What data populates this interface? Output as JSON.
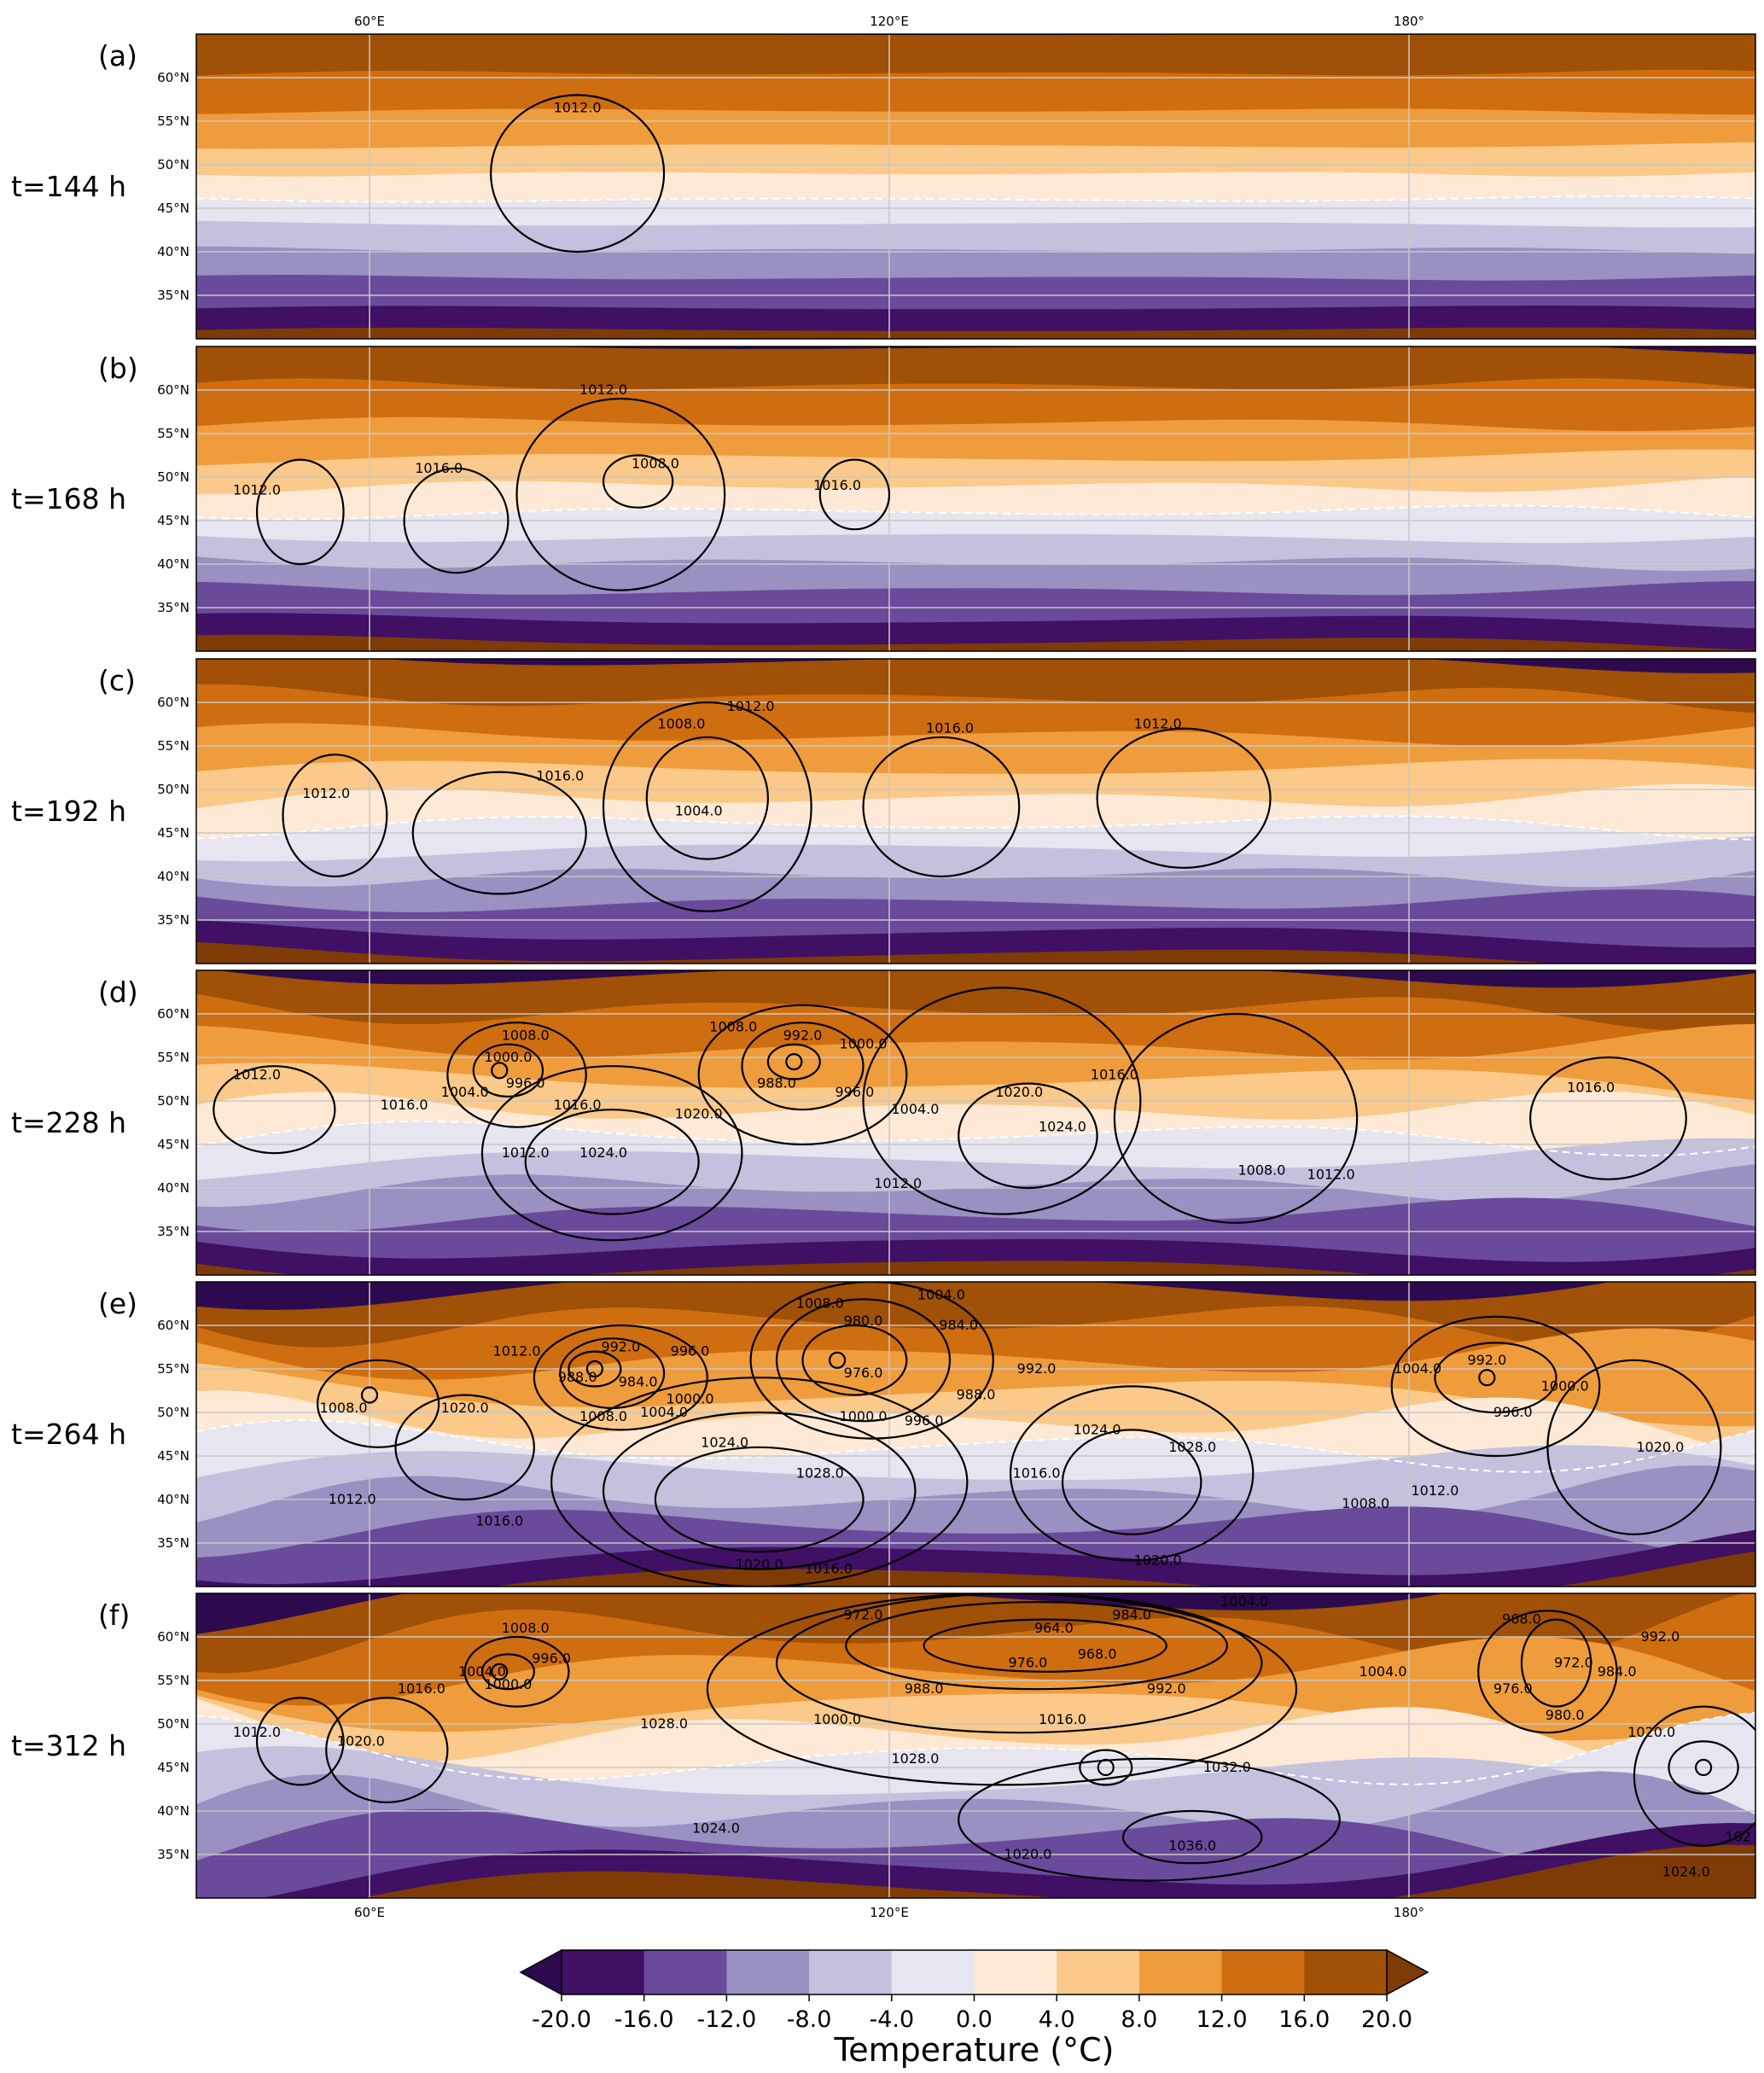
{
  "chart_data": {
    "type": "contour_map",
    "x_ticks": [
      "60°E",
      "120°E",
      "180°"
    ],
    "y_ticks": [
      "60°N",
      "55°N",
      "50°N",
      "45°N",
      "40°N",
      "35°N"
    ],
    "lon_range": [
      40,
      220
    ],
    "lat_range": [
      30,
      65
    ],
    "panels": [
      {
        "label": "(a)",
        "time": "t=144 h",
        "lows": [],
        "contour_labels": [
          {
            "text": "1012.0",
            "lon": 84,
            "lat": 56.5
          }
        ],
        "contours": [
          {
            "lon": 84,
            "lat": 49,
            "rx": 10,
            "ry": 9
          }
        ],
        "wave": 0.5
      },
      {
        "label": "(b)",
        "time": "t=168 h",
        "lows": [],
        "contour_labels": [
          {
            "text": "1012.0",
            "lon": 87,
            "lat": 60
          },
          {
            "text": "1008.0",
            "lon": 93,
            "lat": 51.5
          },
          {
            "text": "1016.0",
            "lon": 68,
            "lat": 51
          },
          {
            "text": "1012.0",
            "lon": 47,
            "lat": 48.5
          },
          {
            "text": "1016.0",
            "lon": 114,
            "lat": 49
          }
        ],
        "contours": [
          {
            "lon": 52,
            "lat": 46,
            "rx": 5,
            "ry": 6
          },
          {
            "lon": 70,
            "lat": 45,
            "rx": 6,
            "ry": 6
          },
          {
            "lon": 89,
            "lat": 48,
            "rx": 12,
            "ry": 11
          },
          {
            "lon": 91,
            "lat": 49.5,
            "rx": 4,
            "ry": 3
          },
          {
            "lon": 116,
            "lat": 48,
            "rx": 4,
            "ry": 4
          }
        ],
        "wave": 1.2
      },
      {
        "label": "(c)",
        "time": "t=192 h",
        "lows": [],
        "contour_labels": [
          {
            "text": "1012.0",
            "lon": 104,
            "lat": 59.5
          },
          {
            "text": "1008.0",
            "lon": 96,
            "lat": 57.5
          },
          {
            "text": "1016.0",
            "lon": 82,
            "lat": 51.5
          },
          {
            "text": "1004.0",
            "lon": 98,
            "lat": 47.5
          },
          {
            "text": "1012.0",
            "lon": 55,
            "lat": 49.5
          },
          {
            "text": "1016.0",
            "lon": 127,
            "lat": 57
          },
          {
            "text": "1012.0",
            "lon": 151,
            "lat": 57.5
          }
        ],
        "contours": [
          {
            "lon": 56,
            "lat": 47,
            "rx": 6,
            "ry": 7
          },
          {
            "lon": 75,
            "lat": 45,
            "rx": 10,
            "ry": 7
          },
          {
            "lon": 99,
            "lat": 48,
            "rx": 12,
            "ry": 12
          },
          {
            "lon": 99,
            "lat": 49,
            "rx": 7,
            "ry": 7
          },
          {
            "lon": 126,
            "lat": 48,
            "rx": 9,
            "ry": 8
          },
          {
            "lon": 154,
            "lat": 49,
            "rx": 10,
            "ry": 8
          }
        ],
        "wave": 2.0
      },
      {
        "label": "(d)",
        "time": "t=228 h",
        "lows": [
          {
            "lon": 75,
            "lat": 53.5
          },
          {
            "lon": 109,
            "lat": 54.5
          }
        ],
        "contour_labels": [
          {
            "text": "1008.0",
            "lon": 78,
            "lat": 57.5
          },
          {
            "text": "1000.0",
            "lon": 76,
            "lat": 55
          },
          {
            "text": "996.0",
            "lon": 78,
            "lat": 52
          },
          {
            "text": "1004.0",
            "lon": 71,
            "lat": 51
          },
          {
            "text": "1012.0",
            "lon": 47,
            "lat": 53
          },
          {
            "text": "1016.0",
            "lon": 64,
            "lat": 49.5
          },
          {
            "text": "1016.0",
            "lon": 84,
            "lat": 49.5
          },
          {
            "text": "1012.0",
            "lon": 78,
            "lat": 44
          },
          {
            "text": "1024.0",
            "lon": 87,
            "lat": 44
          },
          {
            "text": "1020.0",
            "lon": 98,
            "lat": 48.5
          },
          {
            "text": "1008.0",
            "lon": 102,
            "lat": 58.5
          },
          {
            "text": "992.0",
            "lon": 110,
            "lat": 57.5
          },
          {
            "text": "1000.0",
            "lon": 117,
            "lat": 56.5
          },
          {
            "text": "988.0",
            "lon": 107,
            "lat": 52
          },
          {
            "text": "996.0",
            "lon": 116,
            "lat": 51
          },
          {
            "text": "1004.0",
            "lon": 123,
            "lat": 49
          },
          {
            "text": "1020.0",
            "lon": 135,
            "lat": 51
          },
          {
            "text": "1024.0",
            "lon": 140,
            "lat": 47
          },
          {
            "text": "1016.0",
            "lon": 146,
            "lat": 53
          },
          {
            "text": "1012.0",
            "lon": 121,
            "lat": 40.5
          },
          {
            "text": "1008.0",
            "lon": 163,
            "lat": 42
          },
          {
            "text": "1012.0",
            "lon": 171,
            "lat": 41.5
          },
          {
            "text": "1016.0",
            "lon": 201,
            "lat": 51.5
          }
        ],
        "contours": [
          {
            "lon": 49,
            "lat": 49,
            "rx": 7,
            "ry": 5
          },
          {
            "lon": 77,
            "lat": 53,
            "rx": 8,
            "ry": 6
          },
          {
            "lon": 76,
            "lat": 53.5,
            "rx": 4,
            "ry": 3
          },
          {
            "lon": 88,
            "lat": 43,
            "rx": 10,
            "ry": 6
          },
          {
            "lon": 88,
            "lat": 44,
            "rx": 15,
            "ry": 10
          },
          {
            "lon": 110,
            "lat": 53,
            "rx": 12,
            "ry": 8
          },
          {
            "lon": 110,
            "lat": 54,
            "rx": 7,
            "ry": 5
          },
          {
            "lon": 109,
            "lat": 54.5,
            "rx": 3,
            "ry": 2
          },
          {
            "lon": 136,
            "lat": 46,
            "rx": 8,
            "ry": 6
          },
          {
            "lon": 133,
            "lat": 50,
            "rx": 16,
            "ry": 13
          },
          {
            "lon": 160,
            "lat": 48,
            "rx": 14,
            "ry": 12
          },
          {
            "lon": 203,
            "lat": 48,
            "rx": 9,
            "ry": 7
          }
        ],
        "wave": 3.0
      },
      {
        "label": "(e)",
        "time": "t=264 h",
        "lows": [
          {
            "lon": 60,
            "lat": 52
          },
          {
            "lon": 86,
            "lat": 55
          },
          {
            "lon": 114,
            "lat": 56
          },
          {
            "lon": 189,
            "lat": 54
          }
        ],
        "contour_labels": [
          {
            "text": "1008.0",
            "lon": 112,
            "lat": 62.5
          },
          {
            "text": "1004.0",
            "lon": 126,
            "lat": 63.5
          },
          {
            "text": "980.0",
            "lon": 117,
            "lat": 60.5
          },
          {
            "text": "984.0",
            "lon": 128,
            "lat": 60
          },
          {
            "text": "976.0",
            "lon": 117,
            "lat": 54.5
          },
          {
            "text": "992.0",
            "lon": 137,
            "lat": 55
          },
          {
            "text": "988.0",
            "lon": 130,
            "lat": 52
          },
          {
            "text": "1000.0",
            "lon": 117,
            "lat": 49.5
          },
          {
            "text": "996.0",
            "lon": 124,
            "lat": 49
          },
          {
            "text": "1012.0",
            "lon": 77,
            "lat": 57
          },
          {
            "text": "992.0",
            "lon": 89,
            "lat": 57.5
          },
          {
            "text": "996.0",
            "lon": 97,
            "lat": 57
          },
          {
            "text": "988.0",
            "lon": 84,
            "lat": 54
          },
          {
            "text": "984.0",
            "lon": 91,
            "lat": 53.5
          },
          {
            "text": "1000.0",
            "lon": 97,
            "lat": 51.5
          },
          {
            "text": "1004.0",
            "lon": 94,
            "lat": 50
          },
          {
            "text": "1008.0",
            "lon": 87,
            "lat": 49.5
          },
          {
            "text": "1008.0",
            "lon": 57,
            "lat": 50.5
          },
          {
            "text": "1020.0",
            "lon": 71,
            "lat": 50.5
          },
          {
            "text": "1012.0",
            "lon": 58,
            "lat": 40
          },
          {
            "text": "1016.0",
            "lon": 75,
            "lat": 37.5
          },
          {
            "text": "1024.0",
            "lon": 101,
            "lat": 46.5
          },
          {
            "text": "1028.0",
            "lon": 112,
            "lat": 43
          },
          {
            "text": "1020.0",
            "lon": 105,
            "lat": 32.5
          },
          {
            "text": "1016.0",
            "lon": 113,
            "lat": 32
          },
          {
            "text": "1016.0",
            "lon": 137,
            "lat": 43
          },
          {
            "text": "1024.0",
            "lon": 144,
            "lat": 48
          },
          {
            "text": "1028.0",
            "lon": 155,
            "lat": 46
          },
          {
            "text": "1020.0",
            "lon": 151,
            "lat": 33
          },
          {
            "text": "1004.0",
            "lon": 181,
            "lat": 55
          },
          {
            "text": "992.0",
            "lon": 189,
            "lat": 56
          },
          {
            "text": "996.0",
            "lon": 192,
            "lat": 50
          },
          {
            "text": "1000.0",
            "lon": 198,
            "lat": 53
          },
          {
            "text": "1012.0",
            "lon": 183,
            "lat": 41
          },
          {
            "text": "1008.0",
            "lon": 175,
            "lat": 39.5
          },
          {
            "text": "1020.0",
            "lon": 209,
            "lat": 46
          }
        ],
        "contours": [
          {
            "lon": 61,
            "lat": 51,
            "rx": 7,
            "ry": 5
          },
          {
            "lon": 71,
            "lat": 46,
            "rx": 8,
            "ry": 6
          },
          {
            "lon": 89,
            "lat": 54,
            "rx": 10,
            "ry": 6
          },
          {
            "lon": 88,
            "lat": 54.5,
            "rx": 6,
            "ry": 4
          },
          {
            "lon": 86,
            "lat": 55,
            "rx": 3,
            "ry": 2
          },
          {
            "lon": 105,
            "lat": 40,
            "rx": 12,
            "ry": 6
          },
          {
            "lon": 105,
            "lat": 41,
            "rx": 18,
            "ry": 9
          },
          {
            "lon": 105,
            "lat": 42,
            "rx": 24,
            "ry": 12
          },
          {
            "lon": 118,
            "lat": 56,
            "rx": 14,
            "ry": 9
          },
          {
            "lon": 117,
            "lat": 56,
            "rx": 10,
            "ry": 7
          },
          {
            "lon": 116,
            "lat": 56,
            "rx": 6,
            "ry": 4
          },
          {
            "lon": 148,
            "lat": 42,
            "rx": 8,
            "ry": 6
          },
          {
            "lon": 148,
            "lat": 43,
            "rx": 14,
            "ry": 10
          },
          {
            "lon": 190,
            "lat": 53,
            "rx": 12,
            "ry": 8
          },
          {
            "lon": 190,
            "lat": 54,
            "rx": 7,
            "ry": 4
          },
          {
            "lon": 206,
            "lat": 46,
            "rx": 10,
            "ry": 10
          }
        ],
        "wave": 4.5
      },
      {
        "label": "(f)",
        "time": "t=312 h",
        "lows": [
          {
            "lon": 75,
            "lat": 56
          },
          {
            "lon": 145,
            "lat": 45
          },
          {
            "lon": 214,
            "lat": 45
          }
        ],
        "contour_labels": [
          {
            "text": "1008.0",
            "lon": 78,
            "lat": 61
          },
          {
            "text": "996.0",
            "lon": 81,
            "lat": 57.5
          },
          {
            "text": "1004.0",
            "lon": 73,
            "lat": 56
          },
          {
            "text": "1000.0",
            "lon": 76,
            "lat": 54.5
          },
          {
            "text": "1016.0",
            "lon": 66,
            "lat": 54
          },
          {
            "text": "1012.0",
            "lon": 47,
            "lat": 49
          },
          {
            "text": "1020.0",
            "lon": 59,
            "lat": 48
          },
          {
            "text": "1028.0",
            "lon": 94,
            "lat": 50
          },
          {
            "text": "1024.0",
            "lon": 100,
            "lat": 38
          },
          {
            "text": "972.0",
            "lon": 117,
            "lat": 62.5
          },
          {
            "text": "964.0",
            "lon": 139,
            "lat": 61
          },
          {
            "text": "968.0",
            "lon": 144,
            "lat": 58
          },
          {
            "text": "976.0",
            "lon": 136,
            "lat": 57
          },
          {
            "text": "984.0",
            "lon": 148,
            "lat": 62.5
          },
          {
            "text": "988.0",
            "lon": 124,
            "lat": 54
          },
          {
            "text": "992.0",
            "lon": 152,
            "lat": 54
          },
          {
            "text": "1000.0",
            "lon": 114,
            "lat": 50.5
          },
          {
            "text": "1016.0",
            "lon": 140,
            "lat": 50.5
          },
          {
            "text": "1028.0",
            "lon": 123,
            "lat": 46
          },
          {
            "text": "1032.0",
            "lon": 159,
            "lat": 45
          },
          {
            "text": "1036.0",
            "lon": 155,
            "lat": 36
          },
          {
            "text": "1020.0",
            "lon": 136,
            "lat": 35
          },
          {
            "text": "1004.0",
            "lon": 161,
            "lat": 64
          },
          {
            "text": "1004.0",
            "lon": 177,
            "lat": 56
          },
          {
            "text": "968.0",
            "lon": 193,
            "lat": 62
          },
          {
            "text": "972.0",
            "lon": 199,
            "lat": 57
          },
          {
            "text": "976.0",
            "lon": 192,
            "lat": 54
          },
          {
            "text": "980.0",
            "lon": 198,
            "lat": 51
          },
          {
            "text": "984.0",
            "lon": 204,
            "lat": 56
          },
          {
            "text": "992.0",
            "lon": 209,
            "lat": 60
          },
          {
            "text": "1020.0",
            "lon": 208,
            "lat": 49
          },
          {
            "text": "1024.0",
            "lon": 212,
            "lat": 33
          },
          {
            "text": "102",
            "lon": 218,
            "lat": 37
          }
        ],
        "contours": [
          {
            "lon": 76,
            "lat": 56,
            "rx": 3,
            "ry": 2
          },
          {
            "lon": 77,
            "lat": 56,
            "rx": 6,
            "ry": 4
          },
          {
            "lon": 52,
            "lat": 48,
            "rx": 5,
            "ry": 5
          },
          {
            "lon": 62,
            "lat": 47,
            "rx": 7,
            "ry": 6
          },
          {
            "lon": 137,
            "lat": 59,
            "rx": 22,
            "ry": 5
          },
          {
            "lon": 138,
            "lat": 59,
            "rx": 14,
            "ry": 3
          },
          {
            "lon": 135,
            "lat": 57,
            "rx": 28,
            "ry": 8
          },
          {
            "lon": 133,
            "lat": 54,
            "rx": 34,
            "ry": 11
          },
          {
            "lon": 155,
            "lat": 37,
            "rx": 8,
            "ry": 3
          },
          {
            "lon": 150,
            "lat": 39,
            "rx": 22,
            "ry": 7
          },
          {
            "lon": 145,
            "lat": 45,
            "rx": 3,
            "ry": 2
          },
          {
            "lon": 196,
            "lat": 56,
            "rx": 8,
            "ry": 7
          },
          {
            "lon": 197,
            "lat": 57,
            "rx": 4,
            "ry": 5
          },
          {
            "lon": 214,
            "lat": 45,
            "rx": 4,
            "ry": 3
          },
          {
            "lon": 214,
            "lat": 44,
            "rx": 8,
            "ry": 8
          }
        ],
        "wave": 6.0
      }
    ],
    "colorbar": {
      "title": "Temperature (°C)",
      "ticks": [
        "-20.0",
        "-16.0",
        "-12.0",
        "-8.0",
        "-4.0",
        "0.0",
        "4.0",
        "8.0",
        "12.0",
        "16.0",
        "20.0"
      ],
      "colors": [
        "#3f1064",
        "#6a4a9a",
        "#9a90c2",
        "#c4c1de",
        "#e6e5f0",
        "#fde9d6",
        "#fbc98a",
        "#ef9c3c",
        "#cf6e10",
        "#a05007"
      ],
      "under_color": "#2d0a4e",
      "over_color": "#7f3b06"
    },
    "zero_line": "dashed white"
  }
}
